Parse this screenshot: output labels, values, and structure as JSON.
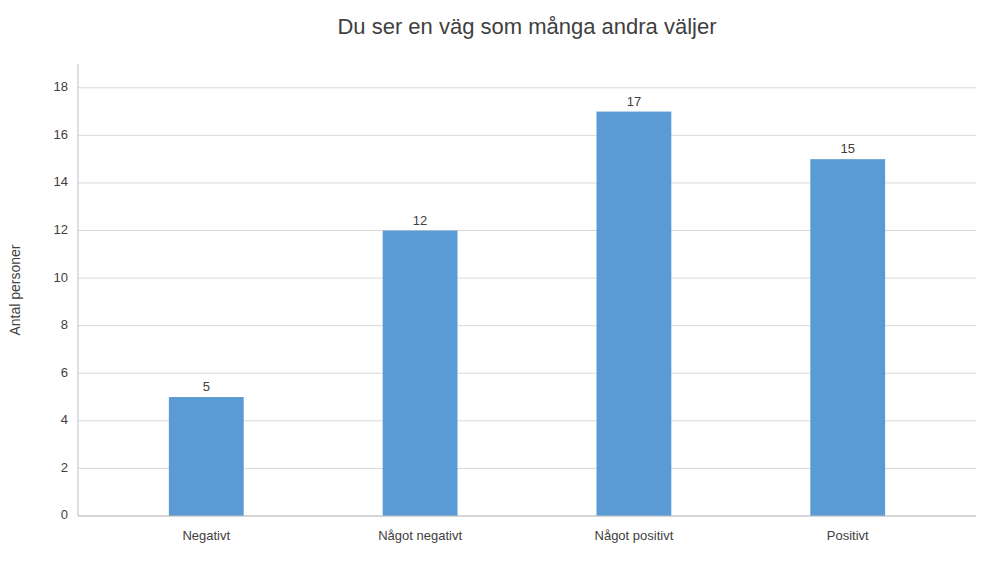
{
  "chart_data": {
    "type": "bar",
    "title": "Du ser en väg som många andra väljer",
    "ylabel": "Antal personer",
    "categories": [
      "Negativt",
      "Något negativt",
      "Något positivt",
      "Positivt"
    ],
    "values": [
      5,
      12,
      17,
      15
    ],
    "color": "#5b9bd5",
    "ylim": [
      0,
      19
    ],
    "yticks": [
      0,
      2,
      4,
      6,
      8,
      10,
      12,
      14,
      16,
      18
    ],
    "grid": true,
    "data_labels": true
  }
}
